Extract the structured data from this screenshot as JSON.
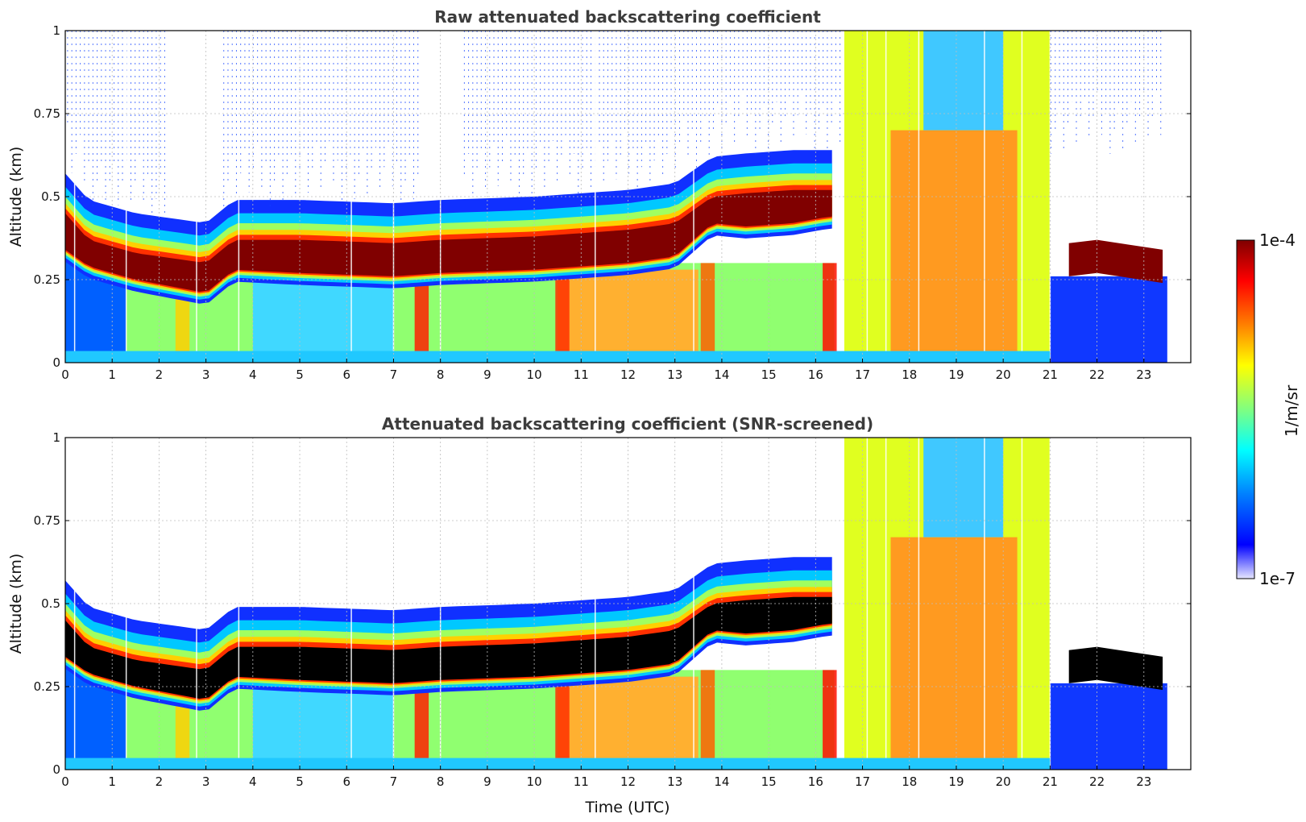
{
  "chart_data": [
    {
      "type": "heatmap",
      "title": "Raw attenuated backscattering coefficient",
      "xlabel": "",
      "ylabel": "Altitude (km)",
      "xlim": [
        0,
        24
      ],
      "ylim": [
        0,
        1
      ],
      "xticks": [
        "0",
        "1",
        "2",
        "3",
        "4",
        "5",
        "6",
        "7",
        "8",
        "9",
        "10",
        "11",
        "12",
        "13",
        "14",
        "15",
        "16",
        "17",
        "18",
        "19",
        "20",
        "21",
        "22",
        "23"
      ],
      "yticks": [
        "0",
        "0.25",
        "0.5",
        "0.75",
        "1"
      ],
      "grid": true,
      "data_end_hour": 23.5,
      "layer_top_km": [
        [
          0,
          0.45
        ],
        [
          0.5,
          0.37
        ],
        [
          1.5,
          0.33
        ],
        [
          3,
          0.3
        ],
        [
          3.6,
          0.37
        ],
        [
          5,
          0.37
        ],
        [
          7,
          0.36
        ],
        [
          8,
          0.37
        ],
        [
          10,
          0.38
        ],
        [
          12,
          0.4
        ],
        [
          13,
          0.42
        ],
        [
          13.8,
          0.5
        ],
        [
          14.5,
          0.51
        ],
        [
          15.5,
          0.52
        ],
        [
          16.3,
          0.52
        ]
      ],
      "layer_bottom_km": [
        [
          0,
          0.34
        ],
        [
          0.5,
          0.29
        ],
        [
          1.5,
          0.25
        ],
        [
          3,
          0.21
        ],
        [
          3.6,
          0.28
        ],
        [
          5,
          0.27
        ],
        [
          7,
          0.26
        ],
        [
          8,
          0.27
        ],
        [
          10,
          0.28
        ],
        [
          12,
          0.3
        ],
        [
          13,
          0.32
        ],
        [
          13.8,
          0.42
        ],
        [
          14.5,
          0.41
        ],
        [
          15.5,
          0.42
        ],
        [
          16.3,
          0.44
        ]
      ],
      "late_layer_km": [
        [
          21.4,
          0.3
        ],
        [
          22,
          0.31
        ],
        [
          23.4,
          0.28
        ]
      ],
      "dense_cloud_hours": [
        16.6,
        21.0
      ]
    },
    {
      "type": "heatmap",
      "title": "Attenuated backscattering coefficient (SNR-screened)",
      "xlabel": "Time (UTC)",
      "ylabel": "Altitude (km)",
      "xlim": [
        0,
        24
      ],
      "ylim": [
        0,
        1
      ],
      "xticks": [
        "0",
        "1",
        "2",
        "3",
        "4",
        "5",
        "6",
        "7",
        "8",
        "9",
        "10",
        "11",
        "12",
        "13",
        "14",
        "15",
        "16",
        "17",
        "18",
        "19",
        "20",
        "21",
        "22",
        "23"
      ],
      "yticks": [
        "0",
        "0.25",
        "0.5",
        "0.75",
        "1"
      ],
      "grid": true,
      "saturated_color": "#000000"
    }
  ],
  "colorbar": {
    "label": "1/m/sr",
    "max_label": "1e-4",
    "min_label": "1e-7",
    "colors": [
      "#e6e6ff",
      "#0000ff",
      "#0080ff",
      "#00ffff",
      "#80ff80",
      "#ffff00",
      "#ff8000",
      "#ff0000",
      "#800000"
    ]
  }
}
